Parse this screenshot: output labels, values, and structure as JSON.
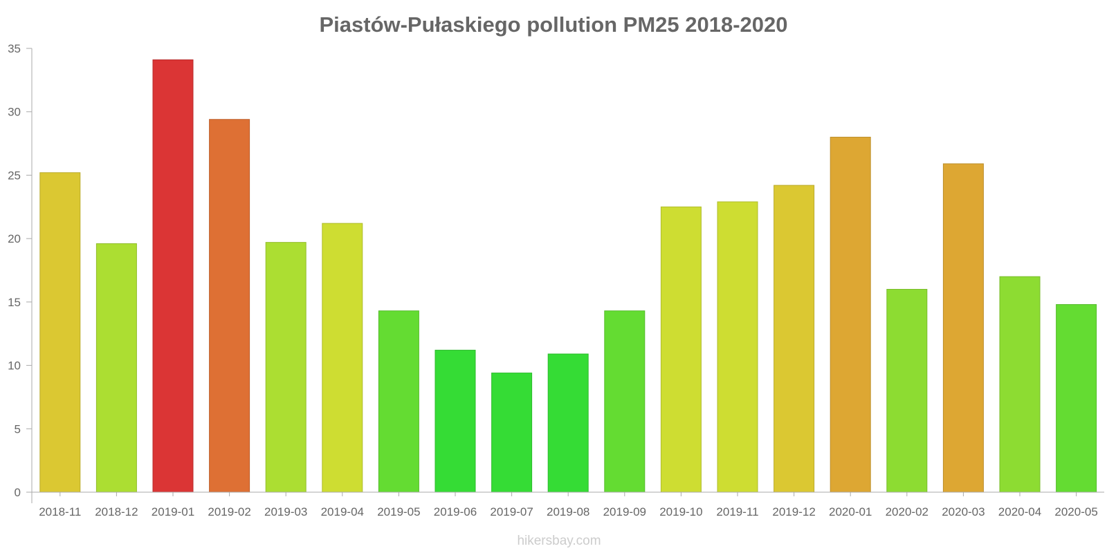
{
  "chart_data": {
    "type": "bar",
    "title": "Piastów-Pułaskiego pollution PM25 2018-2020",
    "xlabel": "",
    "ylabel": "",
    "ylim": [
      0,
      35
    ],
    "yticks": [
      "0",
      "5",
      "10",
      "15",
      "20",
      "25",
      "30",
      "35"
    ],
    "categories": [
      "2018-11",
      "2018-12",
      "2019-01",
      "2019-02",
      "2019-03",
      "2019-04",
      "2019-05",
      "2019-06",
      "2019-07",
      "2019-08",
      "2019-09",
      "2019-10",
      "2019-11",
      "2019-12",
      "2020-01",
      "2020-02",
      "2020-03",
      "2020-04",
      "2020-05"
    ],
    "values": [
      25.2,
      19.6,
      34.1,
      29.4,
      19.7,
      21.2,
      14.3,
      11.2,
      9.4,
      10.9,
      14.3,
      22.5,
      22.9,
      24.2,
      28,
      16,
      25.9,
      17,
      14.8
    ],
    "colors": [
      "#dbc832",
      "#acde32",
      "#db3535",
      "#de7034",
      "#acde32",
      "#cedd32",
      "#64dc32",
      "#35dc35",
      "#35dc35",
      "#35dc35",
      "#64dc32",
      "#cedd32",
      "#cedd32",
      "#dbc832",
      "#dda733",
      "#8ddc32",
      "#dda733",
      "#8ddc32",
      "#64dc32"
    ]
  },
  "watermark": "hikersbay.com"
}
